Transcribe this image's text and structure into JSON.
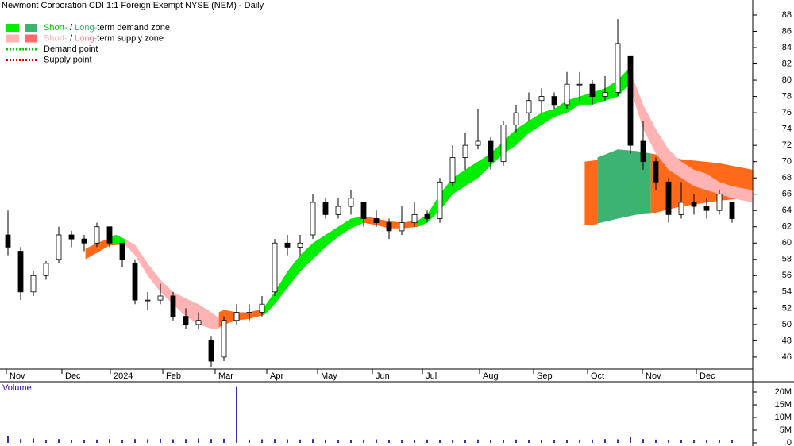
{
  "chart_data": [
    {
      "type": "candlestick",
      "title": "Newmont Corporation CDI 1:1 Foreign Exempt NYSE (NEM) - Daily",
      "x": [
        0,
        1,
        2,
        3,
        4,
        5,
        6,
        7,
        8,
        9,
        10,
        11,
        12,
        13,
        14,
        15,
        16,
        17,
        18,
        19,
        20,
        21,
        22,
        23,
        24,
        25,
        26,
        27,
        28,
        29,
        30,
        31,
        32,
        33,
        34,
        35,
        36,
        37,
        38,
        39,
        40,
        41,
        42,
        43,
        44,
        45,
        46,
        47,
        48,
        49,
        50,
        51,
        52,
        53,
        54,
        55,
        56,
        57
      ],
      "open": [
        61,
        59,
        54,
        56,
        58,
        61,
        60.5,
        60,
        62,
        60,
        57.5,
        53,
        53,
        53.5,
        51,
        50,
        48,
        46,
        50.5,
        51.5,
        51.5,
        54,
        60,
        59.5,
        61,
        65,
        63.5,
        64.5,
        65,
        63,
        62.5,
        61.5,
        62.5,
        63.5,
        63,
        67.5,
        70.5,
        72,
        72.5,
        70,
        74.5,
        76,
        77.5,
        78,
        77,
        79.5,
        79.5,
        78,
        78.5,
        83,
        72.5,
        70,
        67.5,
        63.5,
        65,
        64.5,
        64,
        65
      ],
      "high": [
        64,
        59.5,
        56.5,
        57.8,
        62,
        61.5,
        61,
        62.5,
        62,
        60,
        58,
        54,
        55,
        54,
        52,
        51.5,
        48.5,
        51,
        52.5,
        52.5,
        53.5,
        60.5,
        61,
        61,
        66,
        65.5,
        65.5,
        66.5,
        65,
        64,
        63,
        64.5,
        65,
        64,
        68,
        72,
        73.5,
        76.5,
        73,
        75,
        77,
        78.5,
        79,
        78.5,
        81,
        81,
        80,
        80.5,
        87.5,
        83,
        75,
        70.5,
        68,
        67.5,
        66,
        65.5,
        66.5,
        65
      ],
      "low": [
        58.5,
        53,
        53.5,
        55.5,
        57.5,
        59.5,
        59,
        59.5,
        59.5,
        57,
        52.5,
        51.8,
        52.5,
        50.5,
        49.5,
        49.5,
        44.8,
        45.5,
        50,
        50.5,
        51,
        53.5,
        58.5,
        58.5,
        60.5,
        63,
        63,
        63.5,
        62,
        62,
        60.5,
        61,
        62,
        62.5,
        62.5,
        67,
        69,
        71.5,
        69,
        69.5,
        73.5,
        75,
        76,
        76.5,
        76.5,
        77.5,
        77,
        77.5,
        78,
        71,
        69,
        66.5,
        62.5,
        63,
        63.5,
        63,
        63.5,
        62.5
      ],
      "close": [
        59.5,
        54,
        56,
        57.5,
        61,
        60.5,
        60,
        62,
        60,
        58,
        53,
        53,
        53.5,
        51,
        50,
        50.5,
        45.5,
        50.5,
        51.5,
        51.5,
        52.5,
        60,
        59.5,
        60,
        65,
        63.5,
        64.5,
        65.5,
        63,
        62.5,
        61.5,
        62.5,
        63.5,
        63,
        67.5,
        70.5,
        72,
        72.5,
        70,
        74.5,
        76,
        77.5,
        78,
        77,
        79.5,
        79.5,
        78,
        78.5,
        84.5,
        72,
        70,
        67.5,
        63.5,
        65,
        64.5,
        64,
        66,
        63
      ],
      "up_color": "#ffffff",
      "down_color": "#000000",
      "xlim": [
        -0.625,
        58.625
      ],
      "ylim": [
        44.53,
        89.85
      ],
      "yticks": [
        46,
        48,
        50,
        52,
        54,
        56,
        58,
        60,
        62,
        64,
        66,
        68,
        70,
        72,
        74,
        76,
        78,
        80,
        82,
        84,
        86,
        88
      ],
      "xticks": [
        {
          "value": -0.125,
          "label": "Nov"
        },
        {
          "value": 4.25,
          "label": "Dec"
        },
        {
          "value": 8.06,
          "label": "2024"
        },
        {
          "value": 12.19,
          "label": "Feb"
        },
        {
          "value": 16.31,
          "label": "Mar"
        },
        {
          "value": 20.375,
          "label": "Apr"
        },
        {
          "value": 24.375,
          "label": "May"
        },
        {
          "value": 28.69,
          "label": "Jun"
        },
        {
          "value": 32.63,
          "label": "Jul"
        },
        {
          "value": 37.125,
          "label": "Aug"
        },
        {
          "value": 41.375,
          "label": "Sep"
        },
        {
          "value": 45.625,
          "label": "Oct"
        },
        {
          "value": 49.94,
          "label": "Nov"
        },
        {
          "value": 54.19,
          "label": "Dec"
        }
      ],
      "zones": [
        {
          "color": "#ff6a1a",
          "x": [
            45.4,
            46.4
          ],
          "upper": [
            70,
            70.2
          ],
          "lower": [
            62.2,
            62.3
          ]
        },
        {
          "color": "#3cb371",
          "x": [
            46.4,
            48,
            49.5,
            50.6
          ],
          "upper": [
            70.5,
            71.5,
            71.3,
            71
          ],
          "lower": [
            62.4,
            63,
            63.5,
            63.6
          ]
        },
        {
          "color": "#ff6a1a",
          "x": [
            50.6,
            53,
            56,
            58.6
          ],
          "upper": [
            71,
            70.3,
            69.8,
            69
          ],
          "lower": [
            63.6,
            64.5,
            65.2,
            65.6
          ]
        },
        {
          "color": "#ff6a1a",
          "x": [
            6.1,
            7,
            8,
            8.8
          ],
          "upper": [
            59.3,
            60,
            60.6,
            60.4
          ],
          "lower": [
            58,
            58.8,
            59.7,
            59.8
          ]
        },
        {
          "color": "#00ee00",
          "x": [
            8,
            8.5,
            9.2
          ],
          "upper": [
            60.8,
            61,
            60.5
          ],
          "lower": [
            59.7,
            60,
            59.8
          ]
        },
        {
          "color": "#ffb3b3",
          "x": [
            9.2,
            10,
            11,
            12,
            13,
            14,
            15,
            16,
            16.6
          ],
          "upper": [
            60.5,
            59.8,
            57.5,
            55.5,
            54,
            53.2,
            52.5,
            51.5,
            50.8
          ],
          "lower": [
            59.8,
            58.5,
            56,
            54,
            52.5,
            51,
            50,
            49.5,
            49.5
          ]
        },
        {
          "color": "#ff6a1a",
          "x": [
            16.6,
            17,
            18,
            19,
            20.2
          ],
          "upper": [
            51.5,
            51.8,
            51.5,
            51.5,
            52
          ],
          "lower": [
            49.6,
            50,
            50.5,
            50.7,
            51.2
          ]
        },
        {
          "color": "#00ee00",
          "x": [
            20.2,
            21,
            22,
            23,
            24,
            25,
            26,
            27,
            28
          ],
          "upper": [
            52.2,
            54,
            56.5,
            58.5,
            60,
            61,
            62,
            63,
            63.3
          ],
          "lower": [
            51.2,
            52.5,
            54.5,
            56.5,
            58,
            59.5,
            60.8,
            61.8,
            62.5
          ]
        },
        {
          "color": "#ff6a1a",
          "x": [
            28,
            29,
            30,
            31,
            32.3
          ],
          "upper": [
            63.3,
            63,
            62.7,
            62.5,
            62.8
          ],
          "lower": [
            62.5,
            62.2,
            61.8,
            61.8,
            62
          ]
        },
        {
          "color": "#00ee00",
          "x": [
            32.3,
            33,
            34,
            35,
            36,
            37,
            38,
            39,
            40,
            41,
            42,
            43,
            44,
            45,
            46,
            47,
            48,
            48.9
          ],
          "upper": [
            62.8,
            63.5,
            66,
            68,
            69,
            70,
            71,
            72.5,
            74,
            75,
            76,
            76.5,
            77.5,
            78,
            78.5,
            79,
            80,
            81.5
          ],
          "lower": [
            62,
            62.5,
            64,
            66,
            67,
            68,
            69.5,
            71,
            72,
            73.5,
            74.5,
            75.5,
            76,
            77,
            77,
            77.5,
            78,
            79.5
          ]
        },
        {
          "color": "#ffb3b3",
          "x": [
            48.9,
            50,
            51,
            52,
            53,
            54,
            55,
            56,
            57,
            58.6
          ],
          "upper": [
            81.5,
            77,
            74,
            71.5,
            70,
            69,
            68.5,
            67.5,
            67,
            66.5
          ],
          "lower": [
            79.5,
            74,
            71,
            69,
            68,
            67,
            66.5,
            66,
            65.5,
            65
          ]
        }
      ],
      "legend": [
        {
          "swatches": [
            "#00ee00",
            "#3cb371"
          ],
          "parts": [
            "Short-",
            " / ",
            "Long-",
            "term demand zone"
          ],
          "part_colors": [
            "#00cc00",
            "#000000",
            "#3cb371",
            "#000000"
          ]
        },
        {
          "swatches": [
            "#ffb3b3",
            "#ff6a6a"
          ],
          "parts": [
            "Short-",
            " / ",
            "Long-",
            "term supply zone"
          ],
          "part_colors": [
            "#ffb3b3",
            "#000000",
            "#ff8080",
            "#000000"
          ]
        },
        {
          "line_color": "#00cc00",
          "parts": [
            "Demand point"
          ],
          "part_colors": [
            "#000000"
          ]
        },
        {
          "line_color": "#e00000",
          "parts": [
            "Supply point"
          ],
          "part_colors": [
            "#000000"
          ]
        }
      ]
    },
    {
      "type": "bar",
      "title": "Volume",
      "color": "#3333aa",
      "x": [
        0,
        1,
        2,
        3,
        4,
        5,
        6,
        7,
        8,
        9,
        10,
        11,
        12,
        13,
        14,
        15,
        16,
        17,
        18,
        19,
        20,
        21,
        22,
        23,
        24,
        25,
        26,
        27,
        28,
        29,
        30,
        31,
        32,
        33,
        34,
        35,
        36,
        37,
        38,
        39,
        40,
        41,
        42,
        43,
        44,
        45,
        46,
        47,
        48,
        49,
        50,
        51,
        52,
        53,
        54,
        55,
        56,
        57
      ],
      "values": [
        2.5,
        1.5,
        1.8,
        1.2,
        1.5,
        1.2,
        1,
        1.3,
        1.5,
        1.2,
        1.5,
        1.4,
        1.6,
        1.4,
        1.5,
        1.7,
        1.5,
        1.6,
        22,
        1.3,
        1.4,
        1.5,
        1.4,
        1.3,
        1.5,
        1.3,
        1.2,
        1.2,
        1.3,
        1.4,
        1.2,
        1.1,
        1.2,
        1.3,
        1.2,
        1.2,
        1.2,
        1.3,
        1.2,
        1.2,
        1.3,
        1.2,
        1.1,
        1.2,
        1.2,
        1.3,
        1.3,
        1.5,
        1.4,
        2.2,
        1.5,
        1.3,
        1.2,
        1.1,
        1.1,
        1.1,
        1,
        1
      ],
      "xlim": [
        -0.625,
        58.625
      ],
      "ylim": [
        -1.25,
        23.75
      ],
      "yticks": [
        0,
        {
          "value": 5,
          "label": "5M"
        },
        {
          "value": 10,
          "label": "10M"
        },
        {
          "value": 15,
          "label": "15M"
        },
        {
          "value": 20,
          "label": "20M"
        }
      ]
    }
  ]
}
